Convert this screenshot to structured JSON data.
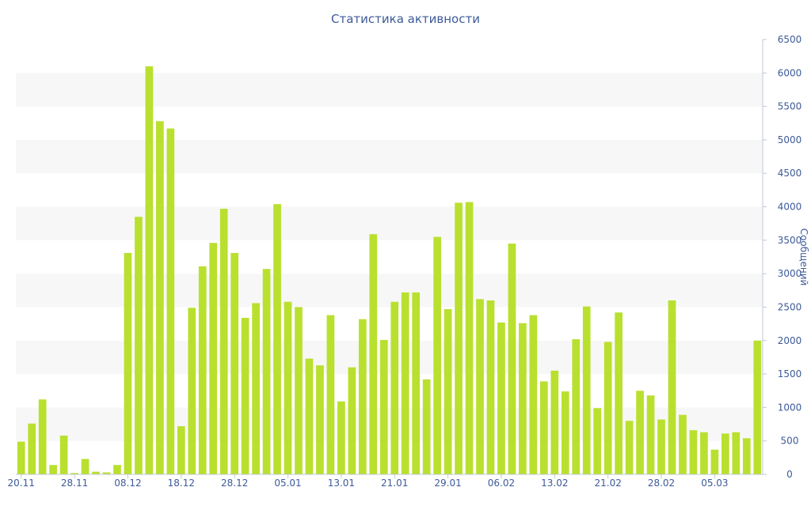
{
  "chart_data": {
    "type": "bar",
    "title": "Статистика активности",
    "ylabel": "Сообщений",
    "xlabel": "",
    "ylim": [
      0,
      6500
    ],
    "y_ticks": [
      0,
      500,
      1000,
      1500,
      2000,
      2500,
      3000,
      3500,
      4000,
      4500,
      5000,
      5500,
      6000,
      6500
    ],
    "y_axis_side": "right",
    "grid": "alternating horizontal bands",
    "x_tick_labels": [
      {
        "label": "20.11",
        "index": 0
      },
      {
        "label": "28.11",
        "index": 5
      },
      {
        "label": "08.12",
        "index": 10
      },
      {
        "label": "18.12",
        "index": 15
      },
      {
        "label": "28.12",
        "index": 20
      },
      {
        "label": "05.01",
        "index": 25
      },
      {
        "label": "13.01",
        "index": 30
      },
      {
        "label": "21.01",
        "index": 35
      },
      {
        "label": "29.01",
        "index": 40
      },
      {
        "label": "06.02",
        "index": 45
      },
      {
        "label": "13.02",
        "index": 50
      },
      {
        "label": "21.02",
        "index": 55
      },
      {
        "label": "28.02",
        "index": 60
      },
      {
        "label": "05.03",
        "index": 65
      }
    ],
    "series": [
      {
        "values": [
          490,
          760,
          1120,
          140,
          580,
          20,
          230,
          40,
          30,
          140,
          3310,
          3850,
          6100,
          5280,
          5170,
          720,
          2490,
          3110,
          3460,
          3970,
          3310,
          2340,
          2560,
          3070,
          4040,
          2580,
          2500,
          1730,
          1630,
          2380,
          1090,
          1600,
          2320,
          3590,
          2010,
          2580,
          2720,
          2720,
          1420,
          3550,
          2470,
          4060,
          4070,
          2620,
          2600,
          2270,
          3450,
          2260,
          2380,
          1390,
          1550,
          1240,
          2020,
          2510,
          990,
          1980,
          2420,
          800,
          1250,
          1180,
          820,
          2600,
          890,
          660,
          630,
          370,
          610,
          630,
          540,
          2000
        ]
      }
    ],
    "colors": {
      "bar": "#b9e02e",
      "text": "#3d5a99",
      "band": "#f7f7f7",
      "axis": "#c0c8d4"
    }
  }
}
